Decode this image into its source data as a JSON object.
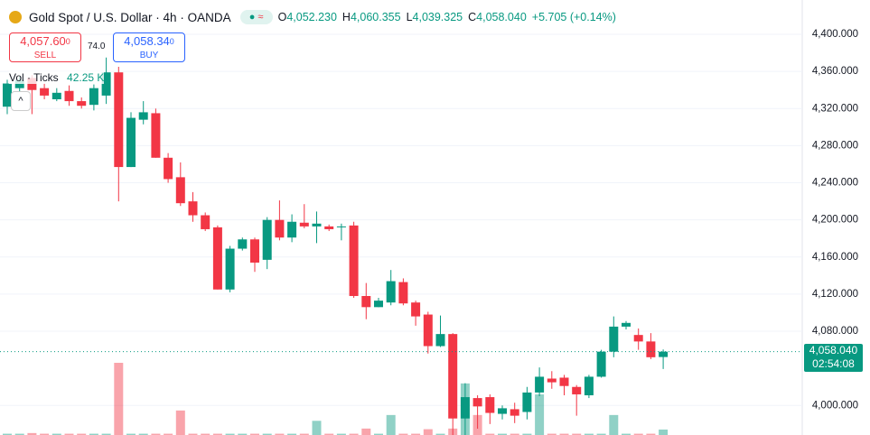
{
  "header": {
    "title": "Gold Spot / U.S. Dollar · 4h · OANDA",
    "o_label": "O",
    "open": "4,052.230",
    "h_label": "H",
    "high": "4,060.355",
    "l_label": "L",
    "low": "4,039.325",
    "c_label": "C",
    "close": "4,058.040",
    "change": "+5.705 (+0.14%)",
    "sell_price": "4,057.60",
    "sell_sup": "0",
    "sell_label": "SELL",
    "spread": "74.0",
    "buy_price": "4,058.34",
    "buy_sup": "0",
    "buy_label": "BUY",
    "volume_title": "Vol · Ticks",
    "volume_value": "42.25 K",
    "price_tag": "4,058.040",
    "countdown": "02:54:08"
  },
  "chart_data": {
    "type": "candlestick",
    "up_color": "#089981",
    "down_color": "#f23645",
    "grid": true,
    "ylim": [
      3968.2,
      4437
    ],
    "yticks": [
      {
        "value": 4000,
        "label": "4,000.000"
      },
      {
        "value": 4080,
        "label": "4,080.000"
      },
      {
        "value": 4120,
        "label": "4,120.000"
      },
      {
        "value": 4160,
        "label": "4,160.000"
      },
      {
        "value": 4200,
        "label": "4,200.000"
      },
      {
        "value": 4240,
        "label": "4,240.000"
      },
      {
        "value": 4280,
        "label": "4,280.000"
      },
      {
        "value": 4320,
        "label": "4,320.000"
      },
      {
        "value": 4360,
        "label": "4,360.000"
      },
      {
        "value": 4400,
        "label": "4,400.000"
      }
    ],
    "open": [
      4322,
      4342,
      4353,
      4342,
      4330,
      4339,
      4328,
      4324,
      4334,
      4359,
      4257,
      4308,
      4315,
      4267,
      4246,
      4220,
      4205,
      4192,
      4125,
      4169,
      4179,
      4157,
      4200,
      4181,
      4197,
      4193,
      4193,
      4192,
      4194,
      4118,
      4106,
      4111,
      4133,
      4111,
      4098,
      4064,
      4077,
      3986,
      4008,
      4009,
      3991,
      3996,
      3993,
      4014,
      4029,
      4030,
      4020,
      4011,
      4031,
      4058,
      4085,
      4076,
      4069,
      4052.23
    ],
    "high": [
      4351,
      4355,
      4356,
      4347,
      4342,
      4345,
      4332,
      4346,
      4375,
      4365,
      4316,
      4328,
      4320,
      4272,
      4262,
      4230,
      4208,
      4194,
      4172,
      4181,
      4181,
      4203,
      4221,
      4206,
      4217,
      4209,
      4195,
      4196,
      4198,
      4132,
      4116,
      4146,
      4137,
      4113,
      4101,
      4097,
      4078,
      4024,
      4011,
      4012,
      4000,
      4003,
      4020,
      4041,
      4037,
      4033,
      4022,
      4033,
      4060,
      4096,
      4091,
      4083,
      4078,
      4060.355
    ],
    "low": [
      4314,
      4335,
      4314,
      4330,
      4328,
      4323,
      4320,
      4318,
      4325,
      4220,
      4257,
      4303,
      4267,
      4240,
      4215,
      4198,
      4188,
      4125,
      4122,
      4167,
      4144,
      4147,
      4178,
      4176,
      4191,
      4175,
      4188,
      4178,
      4116,
      4093,
      4106,
      4108,
      4108,
      4086,
      4056,
      4063,
      3967,
      3968,
      3975,
      3980,
      3985,
      3981,
      3985,
      4010,
      4018,
      4011,
      3989,
      4008,
      4030,
      4052,
      4082,
      4060,
      4050,
      4039.325
    ],
    "close": [
      4347,
      4351,
      4340,
      4334,
      4337,
      4328,
      4323,
      4342,
      4359,
      4257,
      4310,
      4316,
      4267,
      4244,
      4218,
      4205,
      4190,
      4125,
      4169,
      4179,
      4154,
      4200,
      4181,
      4198,
      4193,
      4196,
      4190,
      4193,
      4118,
      4106,
      4113,
      4134,
      4110,
      4096,
      4064,
      4077,
      3986,
      4009,
      3999,
      3992,
      3997,
      3989,
      4014,
      4031,
      4025,
      4021,
      4012,
      4031,
      4058,
      4085,
      4089,
      4069,
      4052,
      4058.04
    ],
    "volume": [
      10,
      10,
      15,
      10,
      10,
      10,
      10,
      10,
      10,
      560,
      10,
      10,
      10,
      10,
      190,
      10,
      10,
      10,
      10,
      10,
      10,
      10,
      10,
      10,
      10,
      110,
      10,
      10,
      10,
      50,
      10,
      155,
      10,
      10,
      45,
      10,
      50,
      400,
      155,
      10,
      10,
      10,
      10,
      315,
      10,
      10,
      10,
      10,
      10,
      155,
      10,
      10,
      10,
      42.25
    ]
  }
}
